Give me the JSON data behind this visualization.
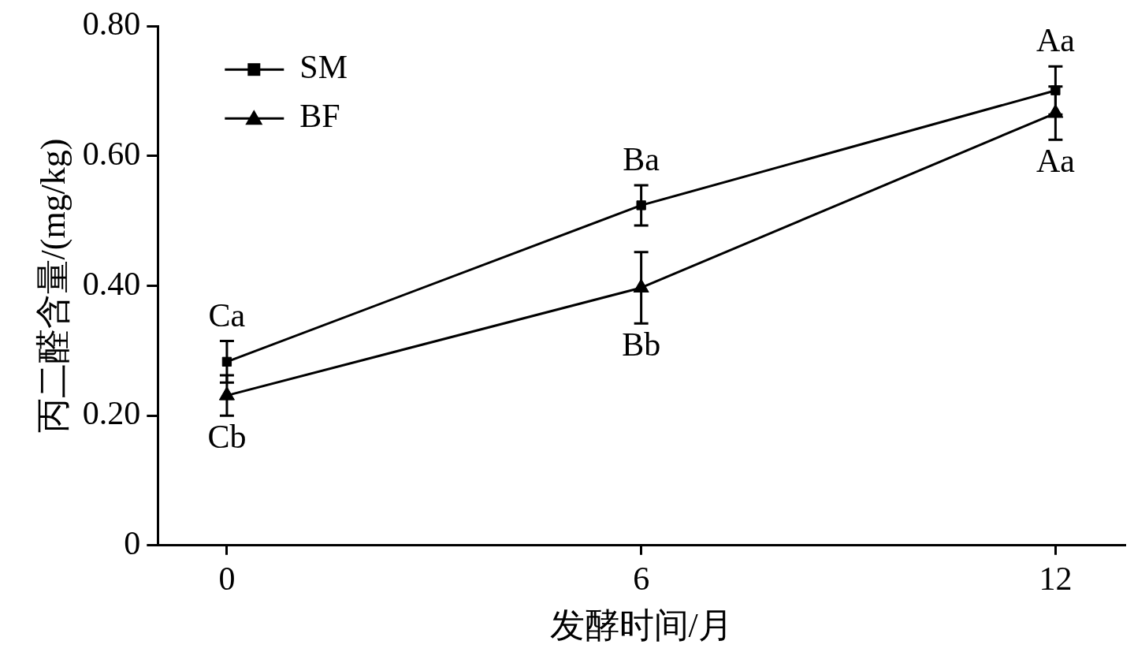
{
  "chart_data": {
    "type": "line",
    "xlabel": "发酵时间/月",
    "ylabel": "丙二醛含量/(mg/kg)",
    "x": [
      0,
      6,
      12
    ],
    "xlim": [
      -1,
      13
    ],
    "xticks": [
      0,
      6,
      12
    ],
    "ylim": [
      0,
      0.8
    ],
    "yticks": [
      {
        "value": 0,
        "label": "0"
      },
      {
        "value": 0.2,
        "label": "0.20"
      },
      {
        "value": 0.4,
        "label": "0.40"
      },
      {
        "value": 0.6,
        "label": "0.60"
      },
      {
        "value": 0.8,
        "label": "0.80"
      }
    ],
    "series": [
      {
        "name": "SM",
        "color": "#000000",
        "marker": "square",
        "values": [
          0.283,
          0.524,
          0.701
        ],
        "errors": [
          0.032,
          0.031,
          0.037
        ]
      },
      {
        "name": "BF",
        "color": "#000000",
        "marker": "triangle",
        "values": [
          0.231,
          0.397,
          0.666
        ],
        "errors": [
          0.031,
          0.055,
          0.041
        ]
      }
    ],
    "annotations": [
      {
        "text": "Ca",
        "x": 0,
        "y": 0.283
      },
      {
        "text": "Cb",
        "x": 0,
        "y": 0.231
      },
      {
        "text": "Ba",
        "x": 6,
        "y": 0.524
      },
      {
        "text": "Bb",
        "x": 6,
        "y": 0.397
      },
      {
        "text": "Aa",
        "x": 12,
        "y": 0.701
      },
      {
        "text": "Aa",
        "x": 12,
        "y": 0.666
      }
    ],
    "legend": "top left",
    "grid": false,
    "line_style": "solid"
  }
}
